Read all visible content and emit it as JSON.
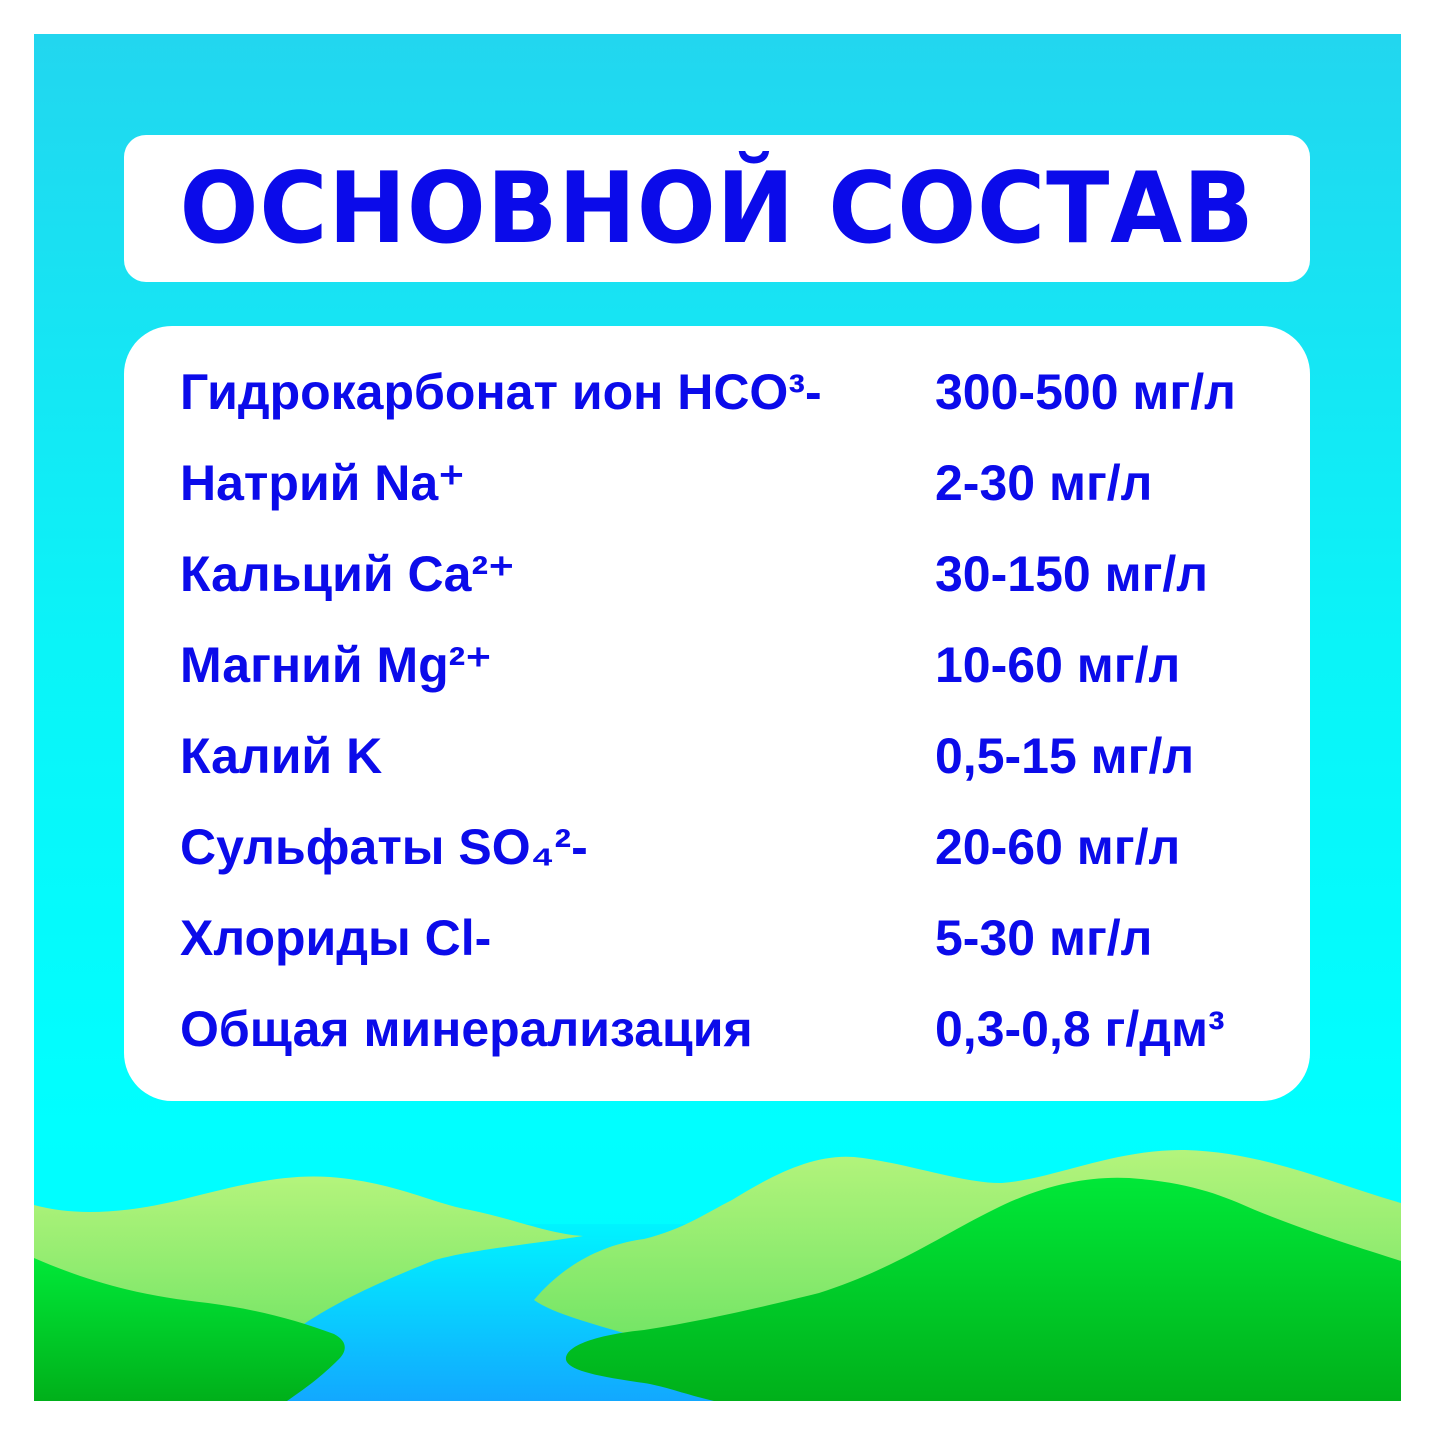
{
  "title": "ОСНОВНОЙ СОСТАВ",
  "colors": {
    "text": "#0b0bea",
    "sky": "#00ffff",
    "hill_light": "#a8f07a",
    "hill_dark": "#00c420",
    "river": "#12aaff"
  },
  "rows": [
    {
      "name": "Гидрокарбонат ион HCO³-",
      "value": "300-500 мг/л"
    },
    {
      "name": "Натрий Na⁺",
      "value": "2-30 мг/л"
    },
    {
      "name": "Кальций Ca²⁺",
      "value": "30-150 мг/л"
    },
    {
      "name": "Магний Mg²⁺",
      "value": "10-60 мг/л"
    },
    {
      "name": "Калий K",
      "value": "0,5-15 мг/л"
    },
    {
      "name": "Сульфаты SO₄²-",
      "value": "20-60 мг/л"
    },
    {
      "name": "Хлориды Cl-",
      "value": "5-30 мг/л"
    },
    {
      "name": "Общая минерализация",
      "value": "0,3-0,8 г/дм³"
    }
  ]
}
